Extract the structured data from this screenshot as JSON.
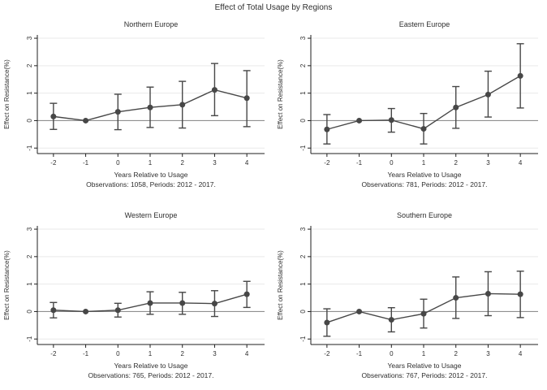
{
  "page_title": "Effect of Total Usage by Regions",
  "colors": {
    "background": "#ffffff",
    "series": "#474747",
    "zero_line": "#8f8f8f",
    "grid": "#e9e9e9",
    "axis": "#1f1f1f",
    "text": "#2e2e2e"
  },
  "chart_data": [
    {
      "type": "line",
      "title": "Northern Europe",
      "xlabel": "Years Relative to Usage",
      "ylabel": "Effect on Resistance(%)",
      "caption": "Observations: 1058, Periods: 2012 - 2017.",
      "marker": "circle",
      "error_bars": true,
      "grid": true,
      "legend": "none",
      "x": [
        -2,
        -1,
        0,
        1,
        2,
        3,
        4
      ],
      "estimate": [
        0.15,
        0.0,
        0.32,
        0.48,
        0.58,
        1.12,
        0.82
      ],
      "ci_low": [
        -0.32,
        0.0,
        -0.33,
        -0.25,
        -0.27,
        0.18,
        -0.22
      ],
      "ci_high": [
        0.63,
        0.0,
        0.96,
        1.22,
        1.43,
        2.08,
        1.82
      ],
      "xticks": [
        -2,
        -1,
        0,
        1,
        2,
        3,
        4
      ],
      "yticks": [
        -1,
        0,
        1,
        2,
        3
      ],
      "xlim": [
        -2.5,
        4.55
      ],
      "ylim": [
        -1.2,
        3.12
      ],
      "zero_line": 0
    },
    {
      "type": "line",
      "title": "Eastern Europe",
      "xlabel": "Years Relative to Usage",
      "ylabel": "Effect on Resistance(%)",
      "caption": "Observations: 781, Periods: 2012 - 2017.",
      "marker": "circle",
      "error_bars": true,
      "grid": true,
      "legend": "none",
      "x": [
        -2,
        -1,
        0,
        1,
        2,
        3,
        4
      ],
      "estimate": [
        -0.32,
        0.0,
        0.02,
        -0.3,
        0.48,
        0.95,
        1.63
      ],
      "ci_low": [
        -0.85,
        0.0,
        -0.42,
        -0.85,
        -0.28,
        0.13,
        0.46
      ],
      "ci_high": [
        0.22,
        0.0,
        0.44,
        0.26,
        1.24,
        1.8,
        2.8
      ],
      "xticks": [
        -2,
        -1,
        0,
        1,
        2,
        3,
        4
      ],
      "yticks": [
        -1,
        0,
        1,
        2,
        3
      ],
      "xlim": [
        -2.5,
        4.55
      ],
      "ylim": [
        -1.2,
        3.12
      ],
      "zero_line": 0
    },
    {
      "type": "line",
      "title": "Western Europe",
      "xlabel": "Years Relative to Usage",
      "ylabel": "Effect on Resistance(%)",
      "caption": "Observations: 765, Periods: 2012 - 2017.",
      "marker": "circle",
      "error_bars": true,
      "grid": true,
      "legend": "none",
      "x": [
        -2,
        -1,
        0,
        1,
        2,
        3,
        4
      ],
      "estimate": [
        0.05,
        0.0,
        0.05,
        0.31,
        0.31,
        0.29,
        0.63
      ],
      "ci_low": [
        -0.23,
        0.0,
        -0.2,
        -0.1,
        -0.1,
        -0.18,
        0.15
      ],
      "ci_high": [
        0.33,
        0.0,
        0.3,
        0.72,
        0.7,
        0.76,
        1.1
      ],
      "xticks": [
        -2,
        -1,
        0,
        1,
        2,
        3,
        4
      ],
      "yticks": [
        -1,
        0,
        1,
        2,
        3
      ],
      "xlim": [
        -2.5,
        4.55
      ],
      "ylim": [
        -1.2,
        3.12
      ],
      "zero_line": 0
    },
    {
      "type": "line",
      "title": "Southern Europe",
      "xlabel": "Years Relative to Usage",
      "ylabel": "Effect on Resistance(%)",
      "caption": "Observations: 767, Periods: 2012 - 2017.",
      "marker": "circle",
      "error_bars": true,
      "grid": true,
      "legend": "none",
      "x": [
        -2,
        -1,
        0,
        1,
        2,
        3,
        4
      ],
      "estimate": [
        -0.4,
        0.0,
        -0.3,
        -0.08,
        0.5,
        0.65,
        0.63
      ],
      "ci_low": [
        -0.9,
        0.0,
        -0.74,
        -0.6,
        -0.25,
        -0.15,
        -0.22
      ],
      "ci_high": [
        0.1,
        0.0,
        0.14,
        0.45,
        1.26,
        1.45,
        1.47
      ],
      "xticks": [
        -2,
        -1,
        0,
        1,
        2,
        3,
        4
      ],
      "yticks": [
        -1,
        0,
        1,
        2,
        3
      ],
      "xlim": [
        -2.5,
        4.55
      ],
      "ylim": [
        -1.2,
        3.12
      ],
      "zero_line": 0
    }
  ]
}
